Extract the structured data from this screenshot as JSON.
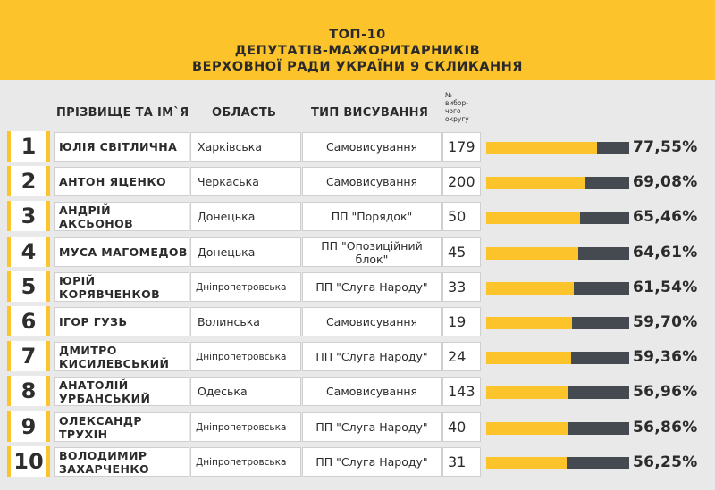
{
  "title_lines": [
    "ТОП-10",
    "ДЕПУТАТІВ-МАЖОРИТАРНИКІВ",
    "ВЕРХОВНОЇ РАДИ УКРАЇНИ 9 СКЛИКАННЯ"
  ],
  "headers": {
    "name": "ПРІЗВИЩЕ ТА ІМ`Я",
    "region": "ОБЛАСТЬ",
    "type": "ТИП ВИСУВАННЯ",
    "okrug_lines": [
      "№",
      "вибор-",
      "чого",
      "округу"
    ]
  },
  "colors": {
    "accent": "#fcc32a",
    "bar_bg": "#444a50",
    "background": "#e9e9e9"
  },
  "rows": [
    {
      "rank": "1",
      "name": "ЮЛІЯ СВІТЛИЧНА",
      "region": "Харківська",
      "type": "Самовисування",
      "okrug": "179",
      "pct_label": "77,55%"
    },
    {
      "rank": "2",
      "name": "АНТОН ЯЦЕНКО",
      "region": "Черкаська",
      "type": "Самовисування",
      "okrug": "200",
      "pct_label": "69,08%"
    },
    {
      "rank": "3",
      "name": "АНДРІЙ АКСЬОНОВ",
      "region": "Донецька",
      "type": "ПП \"Порядок\"",
      "okrug": "50",
      "pct_label": "65,46%"
    },
    {
      "rank": "4",
      "name": "МУСА МАГОМЕДОВ",
      "region": "Донецька",
      "type": "ПП \"Опозиційний блок\"",
      "okrug": "45",
      "pct_label": "64,61%"
    },
    {
      "rank": "5",
      "name": "ЮРІЙ КОРЯВЧЕНКОВ",
      "region": "Дніпропетровська",
      "type": "ПП \"Слуга Народу\"",
      "okrug": "33",
      "pct_label": "61,54%"
    },
    {
      "rank": "6",
      "name": "ІГОР ГУЗЬ",
      "region": "Волинська",
      "type": "Самовисування",
      "okrug": "19",
      "pct_label": "59,70%"
    },
    {
      "rank": "7",
      "name": "ДМИТРО КИСИЛЕВСЬКИЙ",
      "region": "Дніпропетровська",
      "type": "ПП \"Слуга Народу\"",
      "okrug": "24",
      "pct_label": "59,36%"
    },
    {
      "rank": "8",
      "name": "АНАТОЛІЙ УРБАНСЬКИЙ",
      "region": "Одеська",
      "type": "Самовисування",
      "okrug": "143",
      "pct_label": "56,96%"
    },
    {
      "rank": "9",
      "name": "ОЛЕКСАНДР ТРУХІН",
      "region": "Дніпропетровська",
      "type": "ПП \"Слуга Народу\"",
      "okrug": "40",
      "pct_label": "56,86%"
    },
    {
      "rank": "10",
      "name": "ВОЛОДИМИР ЗАХАРЧЕНКО",
      "region": "Дніпропетровська",
      "type": "ПП \"Слуга Народу\"",
      "okrug": "31",
      "pct_label": "56,25%"
    }
  ],
  "chart_data": {
    "type": "bar",
    "categories": [
      "ЮЛІЯ СВІТЛИЧНА",
      "АНТОН ЯЦЕНКО",
      "АНДРІЙ АКСЬОНОВ",
      "МУСА МАГОМЕДОВ",
      "ЮРІЙ КОРЯВЧЕНКОВ",
      "ІГОР ГУЗЬ",
      "ДМИТРО КИСИЛЕВСЬКИЙ",
      "АНАТОЛІЙ УРБАНСЬКИЙ",
      "ОЛЕКСАНДР ТРУХІН",
      "ВОЛОДИМИР ЗАХАРЧЕНКО"
    ],
    "values": [
      77.55,
      69.08,
      65.46,
      64.61,
      61.54,
      59.7,
      59.36,
      56.96,
      56.86,
      56.25
    ],
    "ylim": [
      0,
      100
    ],
    "orientation": "horizontal"
  }
}
